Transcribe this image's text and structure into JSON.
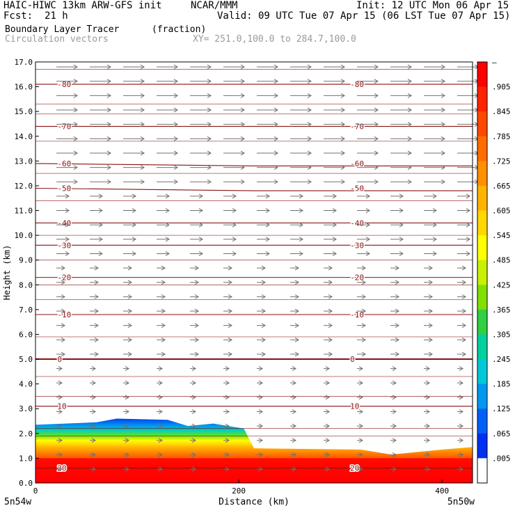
{
  "header": {
    "model": "HAIC-HIWC 13km ARW-GFS init",
    "org": "NCAR/MMM",
    "init": "Init: 12 UTC Mon 06 Apr 15",
    "fcst_label": "Fcst:",
    "fcst_value": "21 h",
    "valid": "Valid: 09 UTC Tue 07 Apr 15 (06 LST Tue 07 Apr 15)",
    "field": "Boundary Layer Tracer",
    "units": "(fraction)",
    "vectors": "Circulation vectors",
    "xy": "XY= 251.0,100.0 to 284.7,100.0"
  },
  "chart_data": {
    "type": "heatmap",
    "xlabel": "Distance (km)",
    "ylabel": "Height (km)",
    "xlim": [
      0,
      430
    ],
    "ylim": [
      0,
      17
    ],
    "x_ticks": [
      "0",
      "200",
      "400"
    ],
    "x_tick_values": [
      0,
      200,
      400
    ],
    "y_ticks": [
      "0.0",
      "1.0",
      "2.0",
      "3.0",
      "4.0",
      "5.0",
      "6.0",
      "7.0",
      "8.0",
      "9.0",
      "10.0",
      "11.0",
      "12.0",
      "13.0",
      "14.0",
      "15.0",
      "16.0",
      "17.0"
    ],
    "left_endpoint": "5n54w",
    "right_endpoint": "5n50w",
    "colorbar": {
      "labels": [
        "–",
        ".905",
        ".845",
        ".785",
        ".725",
        ".665",
        ".605",
        ".545",
        ".485",
        ".425",
        ".365",
        ".305",
        ".245",
        ".185",
        ".125",
        ".065",
        ".005"
      ],
      "colors": [
        "#ff0000",
        "#ff2400",
        "#ff4800",
        "#ff6c00",
        "#ff9000",
        "#ffb400",
        "#ffd800",
        "#ffff00",
        "#c8f000",
        "#80e000",
        "#30d040",
        "#00d0a0",
        "#00c8d8",
        "#0098f0",
        "#0060f8",
        "#0030f0",
        "#ffffff"
      ]
    },
    "temperature_contours": [
      {
        "label": "-80",
        "heights": [
          16.1,
          16.1,
          16.1
        ]
      },
      {
        "label": "-70",
        "heights": [
          14.4,
          14.4,
          14.4
        ]
      },
      {
        "label": "-60",
        "heights": [
          12.9,
          12.8,
          12.8
        ]
      },
      {
        "label": "-50",
        "heights": [
          11.9,
          11.8,
          11.8
        ]
      },
      {
        "label": "-40",
        "heights": [
          10.5,
          10.5,
          10.5
        ]
      },
      {
        "label": "-30",
        "heights": [
          9.6,
          9.6,
          9.6
        ]
      },
      {
        "label": "-20",
        "heights": [
          8.3,
          8.3,
          8.3
        ]
      },
      {
        "label": "-10",
        "heights": [
          6.8,
          6.8,
          6.8
        ]
      },
      {
        "label": "0",
        "heights": [
          5.0,
          5.0,
          5.0
        ]
      },
      {
        "label": "10",
        "heights": [
          3.1,
          3.1,
          3.1
        ]
      },
      {
        "label": "20",
        "heights": [
          0.6,
          0.6,
          0.6
        ]
      }
    ],
    "tracer_top_km": [
      {
        "x": 0,
        "top": 2.35
      },
      {
        "x": 60,
        "top": 2.45
      },
      {
        "x": 80,
        "top": 2.6
      },
      {
        "x": 130,
        "top": 2.55
      },
      {
        "x": 150,
        "top": 2.3
      },
      {
        "x": 175,
        "top": 2.4
      },
      {
        "x": 205,
        "top": 2.2
      },
      {
        "x": 215,
        "top": 1.4
      },
      {
        "x": 320,
        "top": 1.35
      },
      {
        "x": 350,
        "top": 1.15
      },
      {
        "x": 400,
        "top": 1.35
      },
      {
        "x": 430,
        "top": 1.45
      }
    ]
  }
}
